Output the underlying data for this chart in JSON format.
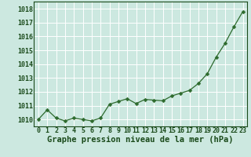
{
  "x": [
    0,
    1,
    2,
    3,
    4,
    5,
    6,
    7,
    8,
    9,
    10,
    11,
    12,
    13,
    14,
    15,
    16,
    17,
    18,
    19,
    20,
    21,
    22,
    23
  ],
  "y": [
    1010.0,
    1010.7,
    1010.1,
    1009.9,
    1010.1,
    1010.0,
    1009.9,
    1010.1,
    1011.1,
    1011.3,
    1011.5,
    1011.15,
    1011.45,
    1011.4,
    1011.35,
    1011.7,
    1011.9,
    1012.1,
    1012.6,
    1013.3,
    1014.5,
    1015.5,
    1016.7,
    1017.8
  ],
  "line_color": "#2d6a2d",
  "marker": "D",
  "marker_size": 2.5,
  "bg_color": "#cce8e0",
  "grid_color": "#ffffff",
  "xlabel": "Graphe pression niveau de la mer (hPa)",
  "xlabel_color": "#1a4a1a",
  "xlabel_fontsize": 7.5,
  "tick_color": "#1a4a1a",
  "tick_fontsize": 6.0,
  "ylim": [
    1009.5,
    1018.5
  ],
  "yticks": [
    1010,
    1011,
    1012,
    1013,
    1014,
    1015,
    1016,
    1017,
    1018
  ],
  "xlim": [
    -0.5,
    23.5
  ],
  "xticks": [
    0,
    1,
    2,
    3,
    4,
    5,
    6,
    7,
    8,
    9,
    10,
    11,
    12,
    13,
    14,
    15,
    16,
    17,
    18,
    19,
    20,
    21,
    22,
    23
  ]
}
